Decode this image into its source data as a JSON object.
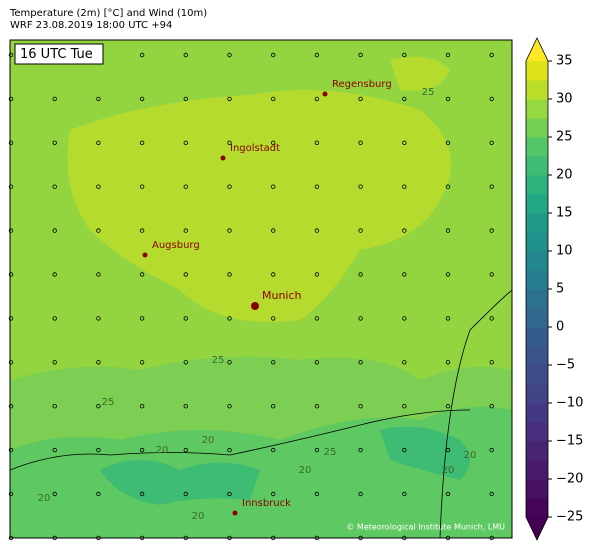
{
  "header": {
    "title": "Temperature (2m) [°C] and Wind (10m)",
    "subtitle": "WRF 23.08.2019 18:00 UTC +94"
  },
  "map": {
    "time_label": "16 UTC Tue",
    "cities": [
      "Regensburg",
      "Ingolstadt",
      "Augsburg",
      "Munich",
      "Innsbruck"
    ],
    "contour_labels": [
      "25",
      "25",
      "25",
      "25",
      "20",
      "20",
      "20",
      "20",
      "20",
      "20",
      "20"
    ],
    "credit": "© Meteorological Institute Munich, LMU"
  },
  "colorbar": {
    "lim": [
      -25,
      35
    ],
    "ticks": [
      -25,
      -20,
      -15,
      -10,
      -5,
      0,
      5,
      10,
      15,
      20,
      25,
      30,
      35
    ],
    "ticks_text": [
      {
        "value": -25,
        "label": "−25"
      },
      {
        "value": -20,
        "label": "−20"
      },
      {
        "value": -15,
        "label": "−15"
      },
      {
        "value": -10,
        "label": "−10"
      },
      {
        "value": -5,
        "label": "−5"
      },
      0,
      5,
      10,
      15,
      20,
      25,
      30,
      35
    ],
    "under_color": "#440154",
    "over_color": "#fde725",
    "colors": [
      "#450457",
      "#471063",
      "#481a6c",
      "#482475",
      "#472e7c",
      "#453882",
      "#414487",
      "#3e4c8a",
      "#3b528b",
      "#365c8d",
      "#31688e",
      "#2c728e",
      "#287d8e",
      "#24868e",
      "#21918c",
      "#1f9a8a",
      "#22a884",
      "#2db27d",
      "#3fbc73",
      "#55c667",
      "#75d054",
      "#95d840",
      "#bade28",
      "#dde318"
    ]
  }
}
